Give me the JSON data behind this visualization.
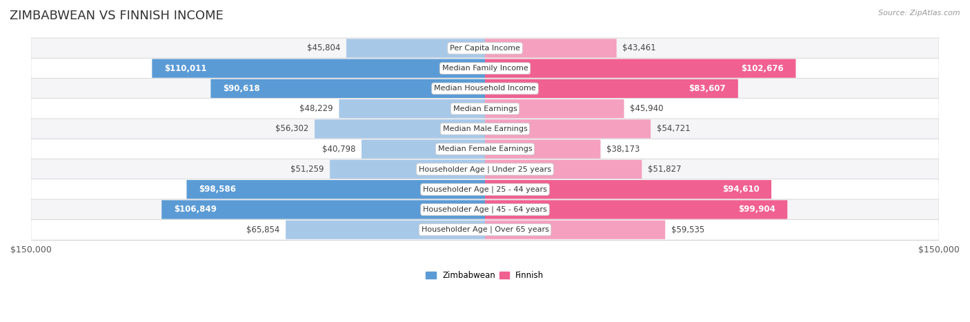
{
  "title": "ZIMBABWEAN VS FINNISH INCOME",
  "source": "Source: ZipAtlas.com",
  "categories": [
    "Per Capita Income",
    "Median Family Income",
    "Median Household Income",
    "Median Earnings",
    "Median Male Earnings",
    "Median Female Earnings",
    "Householder Age | Under 25 years",
    "Householder Age | 25 - 44 years",
    "Householder Age | 45 - 64 years",
    "Householder Age | Over 65 years"
  ],
  "zimbabwean_values": [
    45804,
    110011,
    90618,
    48229,
    56302,
    40798,
    51259,
    98586,
    106849,
    65854
  ],
  "finnish_values": [
    43461,
    102676,
    83607,
    45940,
    54721,
    38173,
    51827,
    94610,
    99904,
    59535
  ],
  "zimbabwean_labels": [
    "$45,804",
    "$110,011",
    "$90,618",
    "$48,229",
    "$56,302",
    "$40,798",
    "$51,259",
    "$98,586",
    "$106,849",
    "$65,854"
  ],
  "finnish_labels": [
    "$43,461",
    "$102,676",
    "$83,607",
    "$45,940",
    "$54,721",
    "$38,173",
    "$51,827",
    "$94,610",
    "$99,904",
    "$59,535"
  ],
  "max_value": 150000,
  "zimbabwean_color_light": "#a8c8e8",
  "zimbabwean_color_dark": "#5b9bd5",
  "finnish_color_light": "#f4a0be",
  "finnish_color_dark": "#f06090",
  "row_bg_even": "#f5f5f7",
  "row_bg_odd": "#ffffff",
  "title_fontsize": 13,
  "label_fontsize": 8.5,
  "category_fontsize": 8,
  "axis_label_fontsize": 9,
  "background_color": "#ffffff",
  "dark_label_threshold": 75000,
  "zimbabwean_dark_rows": [
    1,
    2,
    7,
    8
  ],
  "finnish_dark_rows": [
    1,
    2,
    7,
    8
  ]
}
